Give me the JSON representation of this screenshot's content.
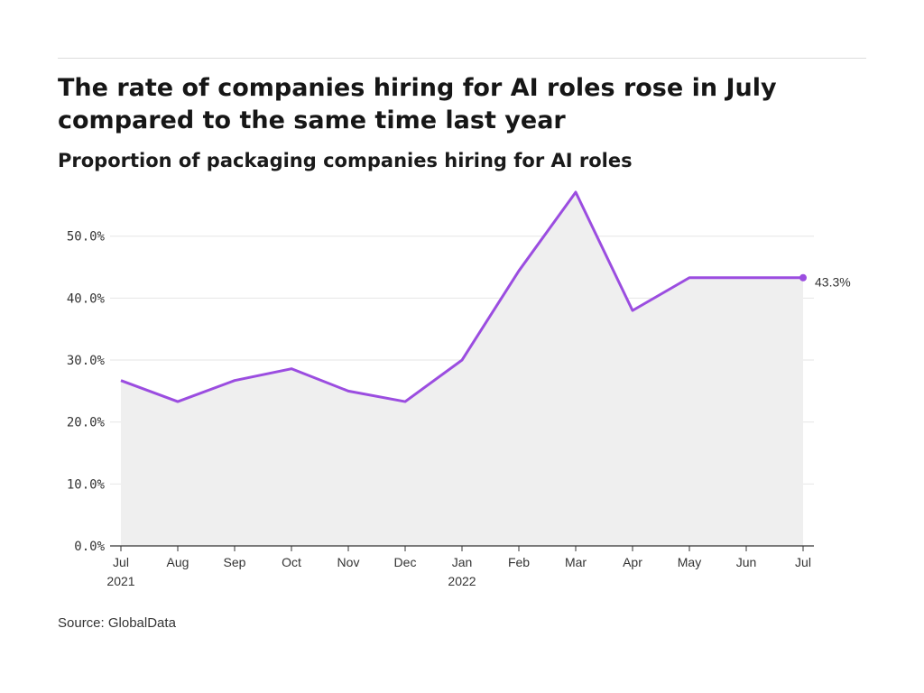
{
  "header": {
    "title": "The rate of companies hiring for AI roles rose in July compared to the same time last year",
    "subtitle": "Proportion of packaging companies hiring for AI roles"
  },
  "footer": {
    "source": "Source: GlobalData"
  },
  "chart_data": {
    "type": "area",
    "categories": [
      "Jul",
      "Aug",
      "Sep",
      "Oct",
      "Nov",
      "Dec",
      "Jan",
      "Feb",
      "Mar",
      "Apr",
      "May",
      "Jun",
      "Jul"
    ],
    "category_sublabels": [
      "2021",
      "",
      "",
      "",
      "",
      "",
      "2022",
      "",
      "",
      "",
      "",
      "",
      ""
    ],
    "series": [
      {
        "values": [
          26.7,
          23.3,
          26.7,
          28.6,
          25.0,
          23.3,
          30.0,
          44.4,
          57.1,
          38.0,
          43.3,
          43.3,
          43.3
        ]
      }
    ],
    "y_ticks": [
      "0.0%",
      "10.0%",
      "20.0%",
      "30.0%",
      "40.0%",
      "50.0%"
    ],
    "ylim": [
      0,
      57.1
    ],
    "end_label": "43.3%",
    "colors": {
      "line": "#9b4de0",
      "fill": "#efefef",
      "grid": "#e6e6e6",
      "axis": "#333333"
    },
    "grid": true,
    "xlabel": "",
    "ylabel": ""
  }
}
